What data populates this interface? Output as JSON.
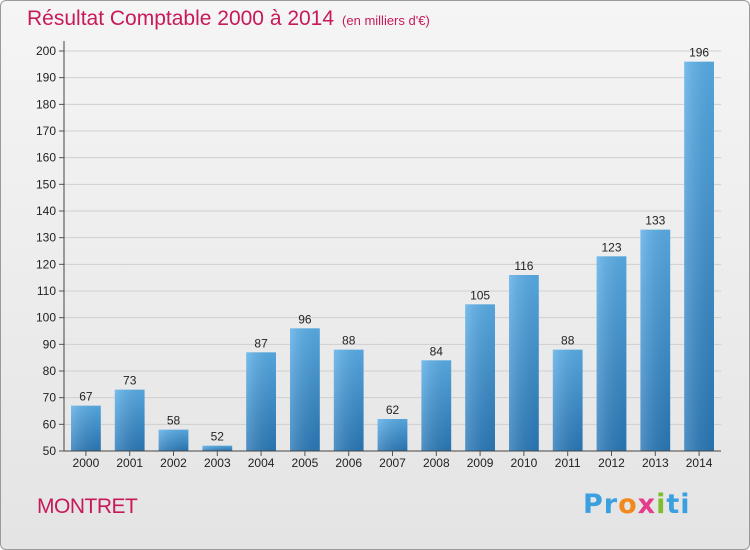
{
  "chart_data": {
    "type": "bar",
    "title": "Résultat Comptable 2000 à 2014",
    "unit_note": "(en milliers d'€)",
    "categories": [
      "2000",
      "2001",
      "2002",
      "2003",
      "2004",
      "2005",
      "2006",
      "2007",
      "2008",
      "2009",
      "2010",
      "2011",
      "2012",
      "2013",
      "2014"
    ],
    "values": [
      67,
      73,
      58,
      52,
      87,
      96,
      88,
      62,
      84,
      105,
      116,
      88,
      123,
      133,
      196
    ],
    "ylim": [
      50,
      200
    ],
    "ytick_step": 10,
    "xlabel": "",
    "ylabel": "",
    "grid": true,
    "bar_color_top": "#5aaee8",
    "bar_color_bottom": "#2a79b8"
  },
  "commune": "MONTRET",
  "logo": {
    "parts": [
      "Pr",
      "o",
      "x",
      "i",
      "ti"
    ]
  },
  "colors": {
    "title": "#c8195a",
    "grid": "#cfcfcf"
  }
}
